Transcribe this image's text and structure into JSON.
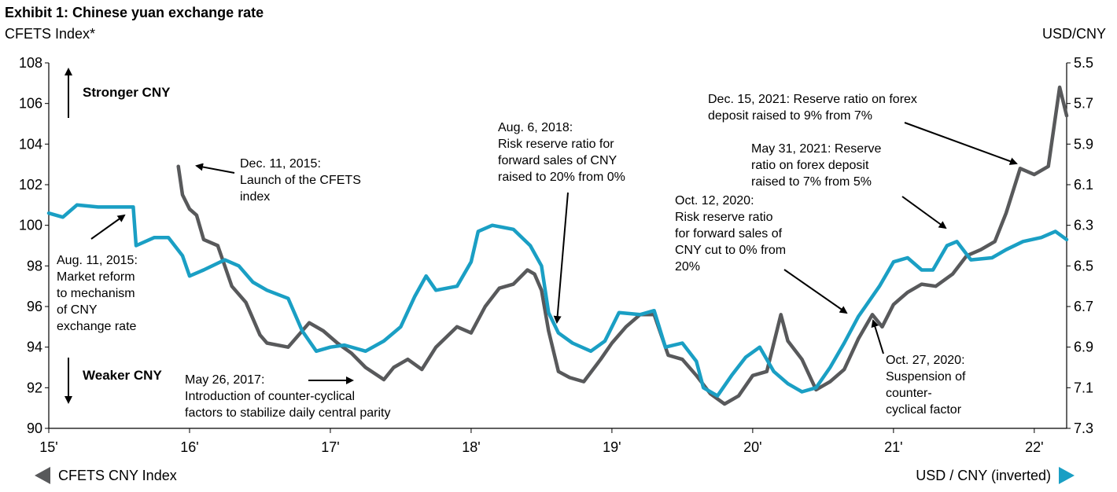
{
  "chart_data": {
    "type": "line",
    "title": "Exhibit 1: Chinese yuan exchange rate",
    "ylabel_left": "CFETS Index*",
    "ylabel_right": "USD/CNY",
    "x_ticks": [
      "15'",
      "16'",
      "17'",
      "18'",
      "19'",
      "20'",
      "21'",
      "22'"
    ],
    "x_range": [
      2015.0,
      2022.23
    ],
    "ylim_left": [
      90,
      108
    ],
    "y_ticks_left": [
      90,
      92,
      94,
      96,
      98,
      100,
      102,
      104,
      106,
      108
    ],
    "ylim_right_inverted": [
      5.5,
      7.3
    ],
    "y_ticks_right": [
      "5.5",
      "5.7",
      "5.9",
      "6.1",
      "6.3",
      "6.5",
      "6.7",
      "6.9",
      "7.1",
      "7.3"
    ],
    "grid": false,
    "series": [
      {
        "name": "CFETS CNY Index",
        "axis": "left",
        "color": "#58595b",
        "points": [
          [
            2015.92,
            102.9
          ],
          [
            2015.95,
            101.5
          ],
          [
            2016.0,
            100.8
          ],
          [
            2016.05,
            100.5
          ],
          [
            2016.1,
            99.3
          ],
          [
            2016.2,
            99.0
          ],
          [
            2016.3,
            97.0
          ],
          [
            2016.4,
            96.2
          ],
          [
            2016.5,
            94.6
          ],
          [
            2016.55,
            94.2
          ],
          [
            2016.7,
            94.0
          ],
          [
            2016.85,
            95.2
          ],
          [
            2016.95,
            94.8
          ],
          [
            2017.05,
            94.2
          ],
          [
            2017.15,
            93.7
          ],
          [
            2017.25,
            93.0
          ],
          [
            2017.38,
            92.4
          ],
          [
            2017.45,
            93.0
          ],
          [
            2017.55,
            93.4
          ],
          [
            2017.65,
            92.9
          ],
          [
            2017.75,
            94.0
          ],
          [
            2017.9,
            95.0
          ],
          [
            2018.0,
            94.7
          ],
          [
            2018.1,
            96.0
          ],
          [
            2018.2,
            96.9
          ],
          [
            2018.3,
            97.1
          ],
          [
            2018.4,
            97.8
          ],
          [
            2018.45,
            97.6
          ],
          [
            2018.5,
            96.8
          ],
          [
            2018.55,
            94.8
          ],
          [
            2018.62,
            92.8
          ],
          [
            2018.7,
            92.5
          ],
          [
            2018.8,
            92.3
          ],
          [
            2018.92,
            93.4
          ],
          [
            2019.0,
            94.2
          ],
          [
            2019.1,
            95.0
          ],
          [
            2019.2,
            95.6
          ],
          [
            2019.3,
            95.6
          ],
          [
            2019.4,
            93.6
          ],
          [
            2019.5,
            93.4
          ],
          [
            2019.6,
            92.6
          ],
          [
            2019.7,
            91.7
          ],
          [
            2019.8,
            91.2
          ],
          [
            2019.9,
            91.6
          ],
          [
            2020.0,
            92.6
          ],
          [
            2020.1,
            92.8
          ],
          [
            2020.2,
            95.6
          ],
          [
            2020.25,
            94.3
          ],
          [
            2020.35,
            93.4
          ],
          [
            2020.45,
            91.9
          ],
          [
            2020.55,
            92.3
          ],
          [
            2020.65,
            92.9
          ],
          [
            2020.75,
            94.4
          ],
          [
            2020.85,
            95.6
          ],
          [
            2020.92,
            95.0
          ],
          [
            2021.0,
            96.1
          ],
          [
            2021.1,
            96.7
          ],
          [
            2021.2,
            97.1
          ],
          [
            2021.3,
            97.0
          ],
          [
            2021.42,
            97.6
          ],
          [
            2021.52,
            98.5
          ],
          [
            2021.62,
            98.8
          ],
          [
            2021.72,
            99.2
          ],
          [
            2021.8,
            100.6
          ],
          [
            2021.9,
            102.8
          ],
          [
            2022.0,
            102.5
          ],
          [
            2022.1,
            102.9
          ],
          [
            2022.18,
            106.8
          ],
          [
            2022.23,
            105.4
          ]
        ]
      },
      {
        "name": "USD / CNY (inverted)",
        "axis": "right",
        "color": "#1a9fc4",
        "points": [
          [
            2015.0,
            6.24
          ],
          [
            2015.1,
            6.26
          ],
          [
            2015.2,
            6.2
          ],
          [
            2015.35,
            6.21
          ],
          [
            2015.5,
            6.21
          ],
          [
            2015.6,
            6.21
          ],
          [
            2015.62,
            6.4
          ],
          [
            2015.75,
            6.36
          ],
          [
            2015.85,
            6.36
          ],
          [
            2015.95,
            6.45
          ],
          [
            2016.0,
            6.55
          ],
          [
            2016.1,
            6.52
          ],
          [
            2016.25,
            6.47
          ],
          [
            2016.35,
            6.5
          ],
          [
            2016.45,
            6.58
          ],
          [
            2016.55,
            6.62
          ],
          [
            2016.7,
            6.66
          ],
          [
            2016.8,
            6.82
          ],
          [
            2016.9,
            6.92
          ],
          [
            2017.0,
            6.9
          ],
          [
            2017.1,
            6.89
          ],
          [
            2017.25,
            6.92
          ],
          [
            2017.38,
            6.87
          ],
          [
            2017.5,
            6.8
          ],
          [
            2017.6,
            6.65
          ],
          [
            2017.68,
            6.55
          ],
          [
            2017.75,
            6.62
          ],
          [
            2017.9,
            6.6
          ],
          [
            2018.0,
            6.48
          ],
          [
            2018.05,
            6.33
          ],
          [
            2018.15,
            6.3
          ],
          [
            2018.3,
            6.32
          ],
          [
            2018.42,
            6.4
          ],
          [
            2018.5,
            6.5
          ],
          [
            2018.55,
            6.73
          ],
          [
            2018.62,
            6.83
          ],
          [
            2018.72,
            6.88
          ],
          [
            2018.85,
            6.92
          ],
          [
            2018.95,
            6.87
          ],
          [
            2019.05,
            6.73
          ],
          [
            2019.2,
            6.74
          ],
          [
            2019.3,
            6.72
          ],
          [
            2019.38,
            6.9
          ],
          [
            2019.5,
            6.88
          ],
          [
            2019.6,
            6.97
          ],
          [
            2019.65,
            7.1
          ],
          [
            2019.75,
            7.14
          ],
          [
            2019.85,
            7.04
          ],
          [
            2019.95,
            6.95
          ],
          [
            2020.05,
            6.9
          ],
          [
            2020.15,
            7.02
          ],
          [
            2020.25,
            7.08
          ],
          [
            2020.35,
            7.12
          ],
          [
            2020.45,
            7.1
          ],
          [
            2020.55,
            7.0
          ],
          [
            2020.65,
            6.88
          ],
          [
            2020.75,
            6.75
          ],
          [
            2020.8,
            6.7
          ],
          [
            2020.9,
            6.6
          ],
          [
            2021.0,
            6.48
          ],
          [
            2021.1,
            6.46
          ],
          [
            2021.2,
            6.52
          ],
          [
            2021.28,
            6.52
          ],
          [
            2021.38,
            6.4
          ],
          [
            2021.45,
            6.38
          ],
          [
            2021.55,
            6.47
          ],
          [
            2021.7,
            6.46
          ],
          [
            2021.8,
            6.42
          ],
          [
            2021.92,
            6.38
          ],
          [
            2022.05,
            6.36
          ],
          [
            2022.15,
            6.33
          ],
          [
            2022.23,
            6.37
          ]
        ]
      }
    ],
    "annotations": [
      {
        "lines": [
          "Aug. 11, 2015:",
          "Market reform",
          "to mechanism",
          "of CNY",
          "exchange rate"
        ]
      },
      {
        "lines": [
          "Dec. 11, 2015:",
          "Launch of the CFETS",
          "index"
        ]
      },
      {
        "lines": [
          "May 26, 2017:",
          "Introduction of counter-cyclical",
          "factors to stabilize daily central parity"
        ]
      },
      {
        "lines": [
          "Aug. 6, 2018:",
          "Risk reserve ratio for",
          "forward sales of CNY",
          "raised to 20% from 0%"
        ]
      },
      {
        "lines": [
          "Oct. 12, 2020:",
          "Risk reserve ratio",
          "for forward sales of",
          "CNY cut to 0% from",
          "20%"
        ]
      },
      {
        "lines": [
          "Oct. 27, 2020:",
          "Suspension of",
          "counter-",
          "cyclical factor"
        ]
      },
      {
        "lines": [
          "May 31, 2021: Reserve",
          "ratio on forex deposit",
          "raised to 7% from 5%"
        ]
      },
      {
        "lines": [
          "Dec. 15, 2021: Reserve ratio on forex",
          "deposit raised to 9% from 7%"
        ]
      }
    ],
    "direction_labels": {
      "stronger": "Stronger CNY",
      "weaker": "Weaker CNY"
    },
    "legend": {
      "left": "CFETS CNY Index",
      "right": "USD / CNY (inverted)"
    }
  }
}
